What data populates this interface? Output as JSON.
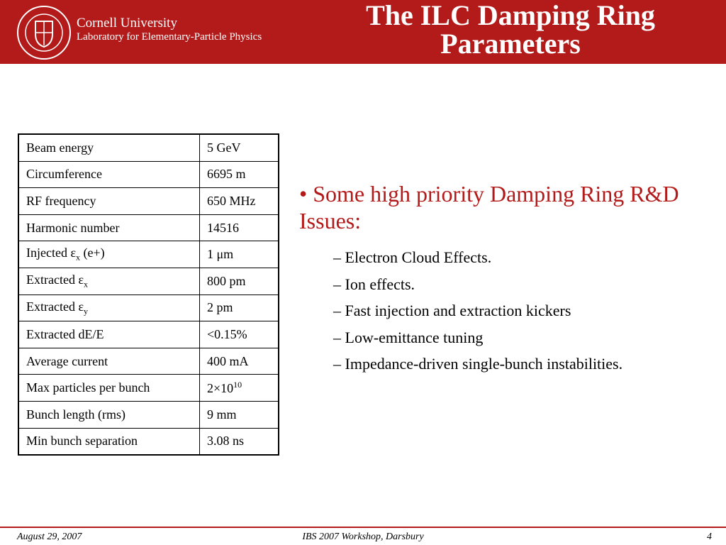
{
  "header": {
    "organization": "Cornell University",
    "laboratory": "Laboratory for Elementary-Particle Physics",
    "title_lines": [
      "The ILC Damping Ring",
      "Parameters"
    ]
  },
  "table": {
    "rows": [
      [
        "Beam energy",
        "5 GeV"
      ],
      [
        "Circumference",
        "6695 m"
      ],
      [
        "RF frequency",
        "650 MHz"
      ],
      [
        "Harmonic number",
        "14516"
      ],
      [
        {
          "text": "Injected ε",
          "sub": "x",
          "tail": " (e+)"
        },
        "1 μm"
      ],
      [
        {
          "text": "Extracted ε",
          "sub": "x"
        },
        "800 pm"
      ],
      [
        {
          "text": "Extracted ε",
          "sub": "y"
        },
        "2 pm"
      ],
      [
        "Extracted dE/E",
        "<0.15%"
      ],
      [
        "Average current",
        "400 mA"
      ],
      [
        "Max particles per bunch",
        {
          "text": "2×10",
          "sup": "10"
        }
      ],
      [
        "Bunch length (rms)",
        "9 mm"
      ],
      [
        "Min bunch separation",
        "3.08 ns"
      ]
    ]
  },
  "content": {
    "bullet": "Some high priority Damping Ring R&D Issues:",
    "items": [
      "Electron Cloud Effects.",
      "Ion effects.",
      "Fast injection and extraction kickers",
      "Low-emittance tuning",
      "Impedance-driven single-bunch instabilities."
    ]
  },
  "footer": {
    "date": "August 29, 2007",
    "event": "IBS 2007 Workshop, Darsbury",
    "page": "4"
  }
}
